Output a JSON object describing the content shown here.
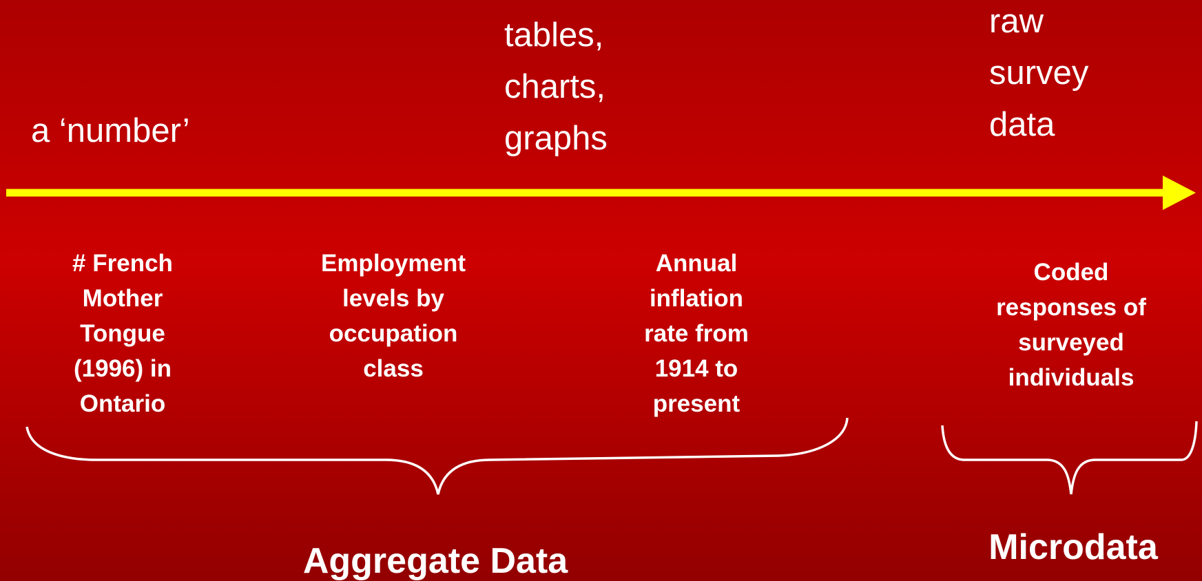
{
  "spectrum": {
    "top_labels": [
      {
        "lines": [
          "a ‘number’"
        ]
      },
      {
        "lines": [
          "tables,",
          "charts,",
          "graphs"
        ]
      },
      {
        "lines": [
          "raw",
          "survey",
          "data"
        ]
      }
    ],
    "examples": [
      {
        "lines": [
          "# French",
          "Mother",
          "Tongue",
          "(1996) in",
          "Ontario"
        ]
      },
      {
        "lines": [
          "Employment",
          "levels by",
          "occupation",
          "class"
        ]
      },
      {
        "lines": [
          "Annual",
          "inflation",
          "rate from",
          "1914 to",
          "present"
        ]
      },
      {
        "lines": [
          "Coded",
          "responses of",
          "surveyed",
          "individuals"
        ]
      }
    ],
    "groups": [
      "Aggregate Data",
      "Microdata"
    ]
  }
}
